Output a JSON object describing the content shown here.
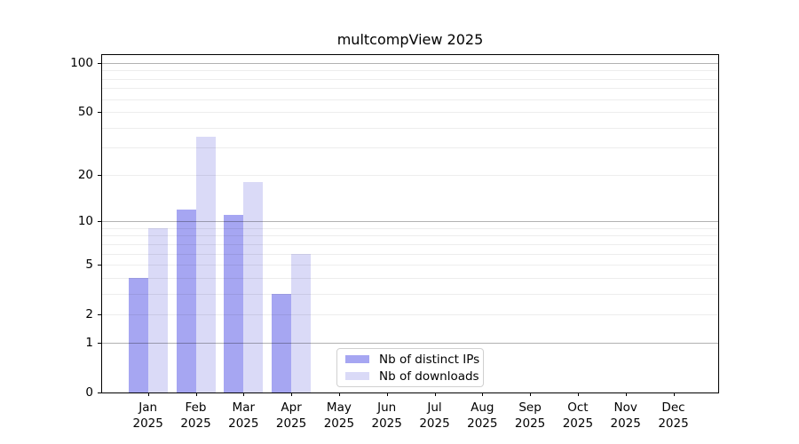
{
  "title": "multcompView 2025",
  "legend": {
    "items": [
      {
        "label": "Nb of distinct IPs",
        "color": "#a6a6f2"
      },
      {
        "label": "Nb of downloads",
        "color": "#dadaf7"
      }
    ]
  },
  "chart_data": {
    "type": "bar",
    "title": "multcompView 2025",
    "categories": [
      "Jan",
      "Feb",
      "Mar",
      "Apr",
      "May",
      "Jun",
      "Jul",
      "Aug",
      "Sep",
      "Oct",
      "Nov",
      "Dec"
    ],
    "year": "2025",
    "series": [
      {
        "name": "Nb of distinct IPs",
        "color": "#a6a6f2",
        "values": [
          4,
          12,
          11,
          3,
          0,
          0,
          0,
          0,
          0,
          0,
          0,
          0
        ]
      },
      {
        "name": "Nb of downloads",
        "color": "#dadaf7",
        "values": [
          9,
          35,
          18,
          6,
          0,
          0,
          0,
          0,
          0,
          0,
          0,
          0
        ]
      }
    ],
    "xlabel": "",
    "ylabel": "",
    "y_scale": "log1p",
    "ylim": [
      0,
      112
    ],
    "y_ticks": [
      0,
      1,
      2,
      5,
      10,
      20,
      50,
      100
    ],
    "gridlines": {
      "major": [
        1,
        10,
        100
      ],
      "minor": [
        2,
        3,
        4,
        5,
        6,
        7,
        8,
        9,
        20,
        30,
        40,
        50,
        60,
        70,
        80,
        90
      ]
    },
    "grid": true,
    "legend_position": "lower center"
  }
}
